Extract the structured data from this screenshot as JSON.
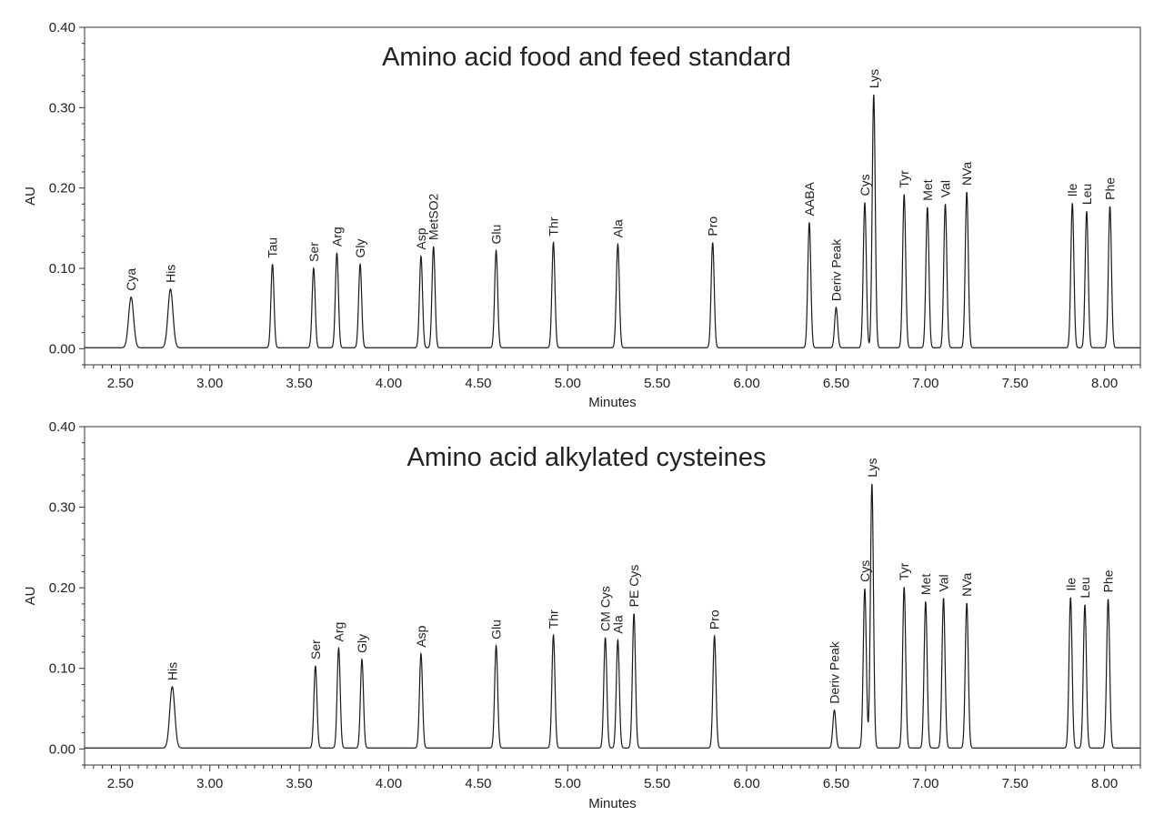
{
  "chart_data": [
    {
      "type": "line",
      "title": "Amino acid food and feed standard",
      "xlabel": "Minutes",
      "ylabel": "AU",
      "xlim": [
        2.3,
        8.2
      ],
      "ylim": [
        -0.02,
        0.4
      ],
      "x_ticks": [
        "2.50",
        "3.00",
        "3.50",
        "4.00",
        "4.50",
        "5.00",
        "5.50",
        "6.00",
        "6.50",
        "7.00",
        "7.50",
        "8.00"
      ],
      "y_ticks": [
        "0.00",
        "0.10",
        "0.20",
        "0.30",
        "0.40"
      ],
      "grid": false,
      "line_color": "#1a1a1a",
      "peaks": [
        {
          "label": "Cya",
          "x": 2.56,
          "y": 0.063
        },
        {
          "label": "His",
          "x": 2.78,
          "y": 0.073
        },
        {
          "label": "Tau",
          "x": 3.35,
          "y": 0.104
        },
        {
          "label": "Ser",
          "x": 3.58,
          "y": 0.099
        },
        {
          "label": "Arg",
          "x": 3.71,
          "y": 0.118
        },
        {
          "label": "Gly",
          "x": 3.84,
          "y": 0.104
        },
        {
          "label": "Asp",
          "x": 4.18,
          "y": 0.114
        },
        {
          "label": "MetSO2",
          "x": 4.25,
          "y": 0.126
        },
        {
          "label": "Glu",
          "x": 4.6,
          "y": 0.121
        },
        {
          "label": "Thr",
          "x": 4.92,
          "y": 0.131
        },
        {
          "label": "Ala",
          "x": 5.28,
          "y": 0.129
        },
        {
          "label": "Pro",
          "x": 5.81,
          "y": 0.131
        },
        {
          "label": "AABA",
          "x": 6.35,
          "y": 0.156
        },
        {
          "label": "Deriv Peak",
          "x": 6.5,
          "y": 0.05
        },
        {
          "label": "Cys",
          "x": 6.66,
          "y": 0.181
        },
        {
          "label": "Lys",
          "x": 6.71,
          "y": 0.315
        },
        {
          "label": "Tyr",
          "x": 6.88,
          "y": 0.191
        },
        {
          "label": "Met",
          "x": 7.01,
          "y": 0.175
        },
        {
          "label": "Val",
          "x": 7.11,
          "y": 0.179
        },
        {
          "label": "NVa",
          "x": 7.23,
          "y": 0.194
        },
        {
          "label": "Ile",
          "x": 7.82,
          "y": 0.18
        },
        {
          "label": "Leu",
          "x": 7.9,
          "y": 0.17
        },
        {
          "label": "Phe",
          "x": 8.03,
          "y": 0.176
        }
      ]
    },
    {
      "type": "line",
      "title": "Amino acid alkylated cysteines",
      "xlabel": "Minutes",
      "ylabel": "AU",
      "xlim": [
        2.3,
        8.2
      ],
      "ylim": [
        -0.02,
        0.4
      ],
      "x_ticks": [
        "2.50",
        "3.00",
        "3.50",
        "4.00",
        "4.50",
        "5.00",
        "5.50",
        "6.00",
        "6.50",
        "7.00",
        "7.50",
        "8.00"
      ],
      "y_ticks": [
        "0.00",
        "0.10",
        "0.20",
        "0.30",
        "0.40"
      ],
      "grid": false,
      "line_color": "#1a1a1a",
      "peaks": [
        {
          "label": "His",
          "x": 2.79,
          "y": 0.076
        },
        {
          "label": "Ser",
          "x": 3.59,
          "y": 0.102
        },
        {
          "label": "Arg",
          "x": 3.72,
          "y": 0.124
        },
        {
          "label": "Gly",
          "x": 3.85,
          "y": 0.11
        },
        {
          "label": "Asp",
          "x": 4.18,
          "y": 0.117
        },
        {
          "label": "Glu",
          "x": 4.6,
          "y": 0.127
        },
        {
          "label": "Thr",
          "x": 4.92,
          "y": 0.14
        },
        {
          "label": "CM Cys",
          "x": 5.21,
          "y": 0.137
        },
        {
          "label": "Ala",
          "x": 5.28,
          "y": 0.134
        },
        {
          "label": "PE Cys",
          "x": 5.37,
          "y": 0.167
        },
        {
          "label": "Pro",
          "x": 5.82,
          "y": 0.139
        },
        {
          "label": "Deriv Peak",
          "x": 6.49,
          "y": 0.047
        },
        {
          "label": "Cys",
          "x": 6.66,
          "y": 0.198
        },
        {
          "label": "Lys",
          "x": 6.7,
          "y": 0.328
        },
        {
          "label": "Tyr",
          "x": 6.88,
          "y": 0.2
        },
        {
          "label": "Met",
          "x": 7.0,
          "y": 0.182
        },
        {
          "label": "Val",
          "x": 7.1,
          "y": 0.186
        },
        {
          "label": "NVa",
          "x": 7.23,
          "y": 0.18
        },
        {
          "label": "Ile",
          "x": 7.81,
          "y": 0.187
        },
        {
          "label": "Leu",
          "x": 7.89,
          "y": 0.178
        },
        {
          "label": "Phe",
          "x": 8.02,
          "y": 0.185
        }
      ]
    }
  ]
}
